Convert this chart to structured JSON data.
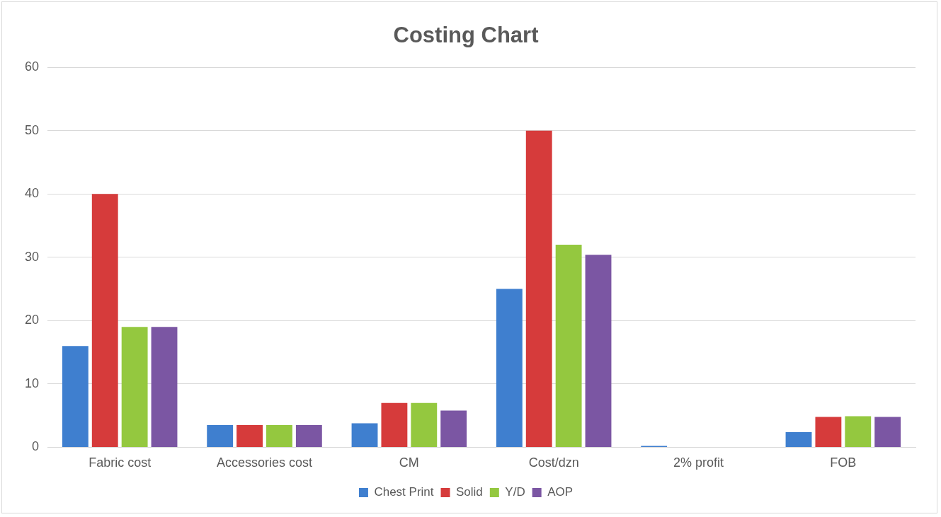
{
  "chart_data": {
    "type": "bar",
    "title": "Costing Chart",
    "categories": [
      "Fabric cost",
      "Accessories cost",
      "CM",
      "Cost/dzn",
      "2% profit",
      "FOB"
    ],
    "series": [
      {
        "name": "Chest Print",
        "color": "#3f7fcf",
        "values": [
          16,
          3.5,
          3.8,
          25,
          0.2,
          2.4
        ]
      },
      {
        "name": "Solid",
        "color": "#d63b3b",
        "values": [
          40,
          3.5,
          7,
          50,
          0,
          4.8
        ]
      },
      {
        "name": "Y/D",
        "color": "#94c83f",
        "values": [
          19,
          3.5,
          7,
          32,
          0,
          4.9
        ]
      },
      {
        "name": "AOP",
        "color": "#7b56a3",
        "values": [
          19,
          3.5,
          5.8,
          30.4,
          0,
          4.8
        ]
      }
    ],
    "ylim": [
      0,
      60
    ],
    "yticks": [
      0,
      10,
      20,
      30,
      40,
      50,
      60
    ],
    "grid": "y",
    "legend": "bottom"
  }
}
